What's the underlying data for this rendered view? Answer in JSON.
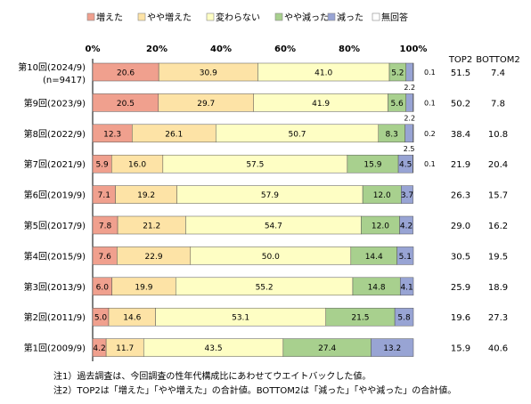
{
  "chart_data": {
    "type": "bar",
    "stacked": true,
    "orientation": "horizontal",
    "xlim": [
      0,
      100
    ],
    "x_ticks": [
      "0%",
      "20%",
      "40%",
      "60%",
      "80%",
      "100%"
    ],
    "grid": false,
    "legend_position": "top",
    "categories": [
      {
        "label": "第10回(2024/9)",
        "sublabel": "(n=9417)"
      },
      {
        "label": "第9回(2023/9)",
        "sublabel": ""
      },
      {
        "label": "第8回(2022/9)",
        "sublabel": ""
      },
      {
        "label": "第7回(2021/9)",
        "sublabel": ""
      },
      {
        "label": "第6回(2019/9)",
        "sublabel": ""
      },
      {
        "label": "第5回(2017/9)",
        "sublabel": ""
      },
      {
        "label": "第4回(2015/9)",
        "sublabel": ""
      },
      {
        "label": "第3回(2013/9)",
        "sublabel": ""
      },
      {
        "label": "第2回(2011/9)",
        "sublabel": ""
      },
      {
        "label": "第1回(2009/9)",
        "sublabel": ""
      }
    ],
    "series": [
      {
        "name": "増えた",
        "color": "#f0a08e",
        "values": [
          20.6,
          20.5,
          12.3,
          5.9,
          7.1,
          7.8,
          7.6,
          6.0,
          5.0,
          4.2
        ]
      },
      {
        "name": "やや増えた",
        "color": "#fde3a6",
        "values": [
          30.9,
          29.7,
          26.1,
          16.0,
          19.2,
          21.2,
          22.9,
          19.9,
          14.6,
          11.7
        ]
      },
      {
        "name": "変わらない",
        "color": "#fefec4",
        "values": [
          41.0,
          41.9,
          50.7,
          57.5,
          57.9,
          54.7,
          50.0,
          55.2,
          53.1,
          43.5
        ]
      },
      {
        "name": "やや減った",
        "color": "#a8d08e",
        "values": [
          5.2,
          5.6,
          8.3,
          15.9,
          12.0,
          12.0,
          14.4,
          14.8,
          21.5,
          27.4
        ]
      },
      {
        "name": "減った",
        "color": "#98a4d4",
        "values": [
          2.2,
          2.2,
          2.5,
          4.5,
          3.7,
          4.2,
          5.1,
          4.1,
          5.8,
          13.2
        ]
      },
      {
        "name": "無回答",
        "color": "#ffffff",
        "values": [
          0.1,
          0.1,
          0.2,
          0.1,
          null,
          null,
          null,
          null,
          null,
          null
        ]
      }
    ],
    "extra_columns": [
      {
        "name": "TOP2",
        "values": [
          51.5,
          50.2,
          38.4,
          21.9,
          26.3,
          29.0,
          30.5,
          25.9,
          19.6,
          15.9
        ]
      },
      {
        "name": "BOTTOM2",
        "values": [
          7.4,
          7.8,
          10.8,
          20.4,
          15.7,
          16.2,
          19.5,
          18.9,
          27.3,
          40.6
        ]
      }
    ]
  },
  "notes": [
    "注1）過去調査は、今回調査の性年代構成比にあわせてウエイトバックした値。",
    "注2）TOP2は「増えた」「やや増えた」の合計値。BOTTOM2は「減った」「やや減った」の合計値。"
  ]
}
